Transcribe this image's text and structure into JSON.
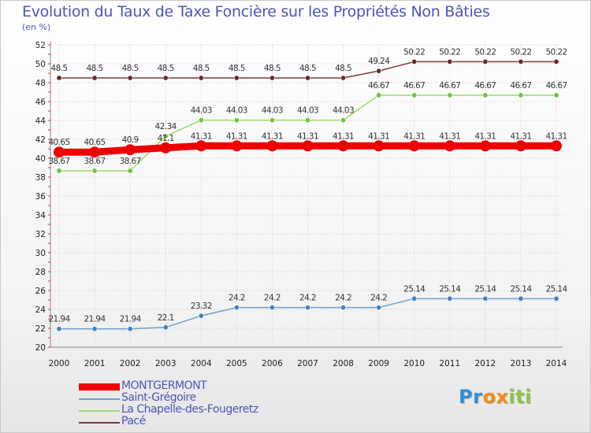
{
  "title": "Evolution du Taux de Taxe Foncière sur les Propriétés Non Bâties",
  "subtitle": "(en %)",
  "logo": {
    "letters": [
      "P",
      "r",
      "o",
      "x",
      "i",
      "t",
      "i"
    ],
    "colors": [
      "#2f8fd6",
      "#2f8fd6",
      "#f28c1b",
      "#f28c1b",
      "#8cc63f",
      "#8cc63f",
      "#8cc63f"
    ]
  },
  "chart_data": {
    "type": "line",
    "title": "Evolution du Taux de Taxe Foncière sur les Propriétés Non Bâties",
    "ylabel": "(en %)",
    "xlabel": "",
    "x": [
      "2000",
      "2001",
      "2002",
      "2003",
      "2004",
      "2005",
      "2006",
      "2007",
      "2008",
      "2009",
      "2010",
      "2011",
      "2012",
      "2013",
      "2014"
    ],
    "ylim": [
      20,
      52
    ],
    "yticks": [
      20,
      22,
      24,
      26,
      28,
      30,
      32,
      34,
      36,
      38,
      40,
      42,
      44,
      46,
      48,
      50,
      52
    ],
    "grid": true,
    "legend_position": "bottom-left",
    "series": [
      {
        "name": "MONTGERMONT",
        "color": "#ee0000",
        "marker_color": "#ee0000",
        "emphasis": true,
        "values": [
          40.65,
          40.65,
          40.9,
          41.1,
          41.31,
          41.31,
          41.31,
          41.31,
          41.31,
          41.31,
          41.31,
          41.31,
          41.31,
          41.31,
          41.31
        ],
        "labels": [
          "40.65",
          "40.65",
          "40.9",
          "41.1",
          "41.31",
          "41.31",
          "41.31",
          "41.31",
          "41.31",
          "41.31",
          "41.31",
          "41.31",
          "41.31",
          "41.31",
          "41.31"
        ]
      },
      {
        "name": "Saint-Grégoire",
        "color": "#6fa0d0",
        "marker_color": "#3f84c4",
        "values": [
          21.94,
          21.94,
          21.94,
          22.1,
          23.32,
          24.2,
          24.2,
          24.2,
          24.2,
          24.2,
          25.14,
          25.14,
          25.14,
          25.14,
          25.14
        ],
        "labels": [
          "21.94",
          "21.94",
          "21.94",
          "22.1",
          "23.32",
          "24.2",
          "24.2",
          "24.2",
          "24.2",
          "24.2",
          "25.14",
          "25.14",
          "25.14",
          "25.14",
          "25.14"
        ]
      },
      {
        "name": "La Chapelle-des-Fougeretz",
        "color": "#99dd66",
        "marker_color": "#72c23e",
        "values": [
          38.67,
          38.67,
          38.67,
          42.34,
          44.03,
          44.03,
          44.03,
          44.03,
          44.03,
          46.67,
          46.67,
          46.67,
          46.67,
          46.67,
          46.67
        ],
        "labels": [
          "38.67",
          "38.67",
          "38.67",
          "42.34",
          "44.03",
          "44.03",
          "44.03",
          "44.03",
          "44.03",
          "46.67",
          "46.67",
          "46.67",
          "46.67",
          "46.67",
          "46.67"
        ]
      },
      {
        "name": "Pacé",
        "color": "#7a3b3b",
        "marker_color": "#6a2a2a",
        "values": [
          48.5,
          48.5,
          48.5,
          48.5,
          48.5,
          48.5,
          48.5,
          48.5,
          48.5,
          49.24,
          50.22,
          50.22,
          50.22,
          50.22,
          50.22
        ],
        "labels": [
          "48.5",
          "48.5",
          "48.5",
          "48.5",
          "48.5",
          "48.5",
          "48.5",
          "48.5",
          "48.5",
          "49.24",
          "50.22",
          "50.22",
          "50.22",
          "50.22",
          "50.22"
        ]
      }
    ]
  }
}
